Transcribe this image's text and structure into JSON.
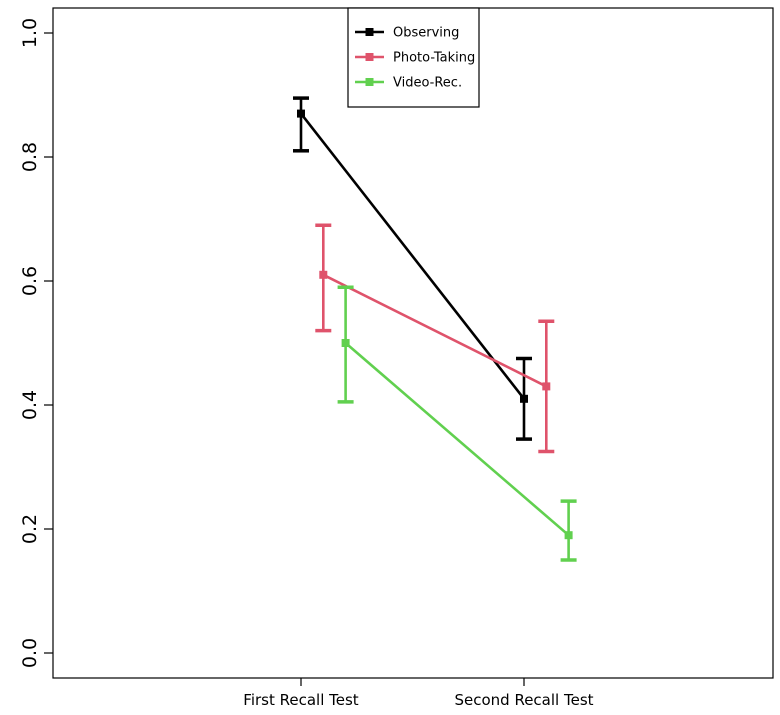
{
  "chart_data": {
    "type": "line",
    "categories": [
      "First Recall Test",
      "Second Recall Test"
    ],
    "ylim": [
      0.0,
      1.0
    ],
    "yticks": [
      "0.0",
      "0.2",
      "0.4",
      "0.6",
      "0.8",
      "1.0"
    ],
    "title": "",
    "xlabel": "",
    "ylabel": "",
    "grid": false,
    "legend_position": "top-center",
    "series": [
      {
        "name": "Observing",
        "color": "#000000",
        "values": [
          0.87,
          0.41
        ],
        "err_low": [
          0.81,
          0.345
        ],
        "err_high": [
          0.895,
          0.475
        ],
        "x_offset": [
          0.0,
          0.0
        ]
      },
      {
        "name": "Photo-Taking",
        "color": "#DF536B",
        "values": [
          0.61,
          0.43
        ],
        "err_low": [
          0.52,
          0.325
        ],
        "err_high": [
          0.69,
          0.535
        ],
        "x_offset": [
          0.1,
          0.1
        ]
      },
      {
        "name": "Video-Rec.",
        "color": "#61D04F",
        "values": [
          0.5,
          0.19
        ],
        "err_low": [
          0.405,
          0.15
        ],
        "err_high": [
          0.59,
          0.245
        ],
        "x_offset": [
          0.2,
          0.2
        ]
      }
    ]
  }
}
